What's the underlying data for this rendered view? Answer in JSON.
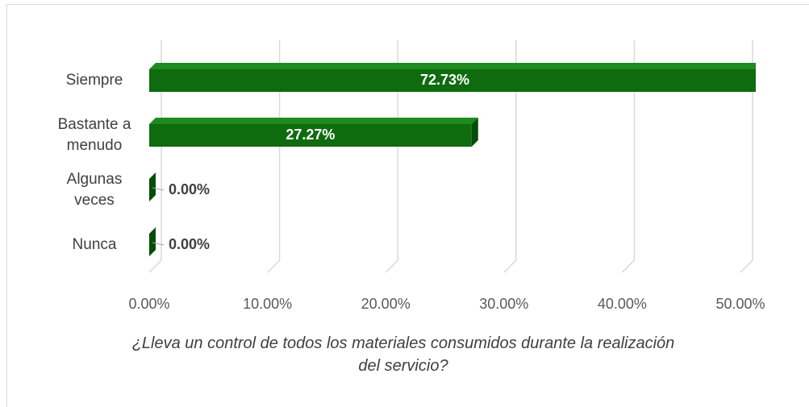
{
  "chart_data": {
    "type": "bar",
    "orientation": "horizontal",
    "title": "¿Lleva un control de todos los materiales consumidos durante la realización del servicio?",
    "categories": [
      "Siempre",
      "Bastante a menudo",
      "Algunas veces",
      "Nunca"
    ],
    "values": [
      72.73,
      27.27,
      0,
      0
    ],
    "value_labels": [
      "72.73%",
      "27.27%",
      "0.00%",
      "0.00%"
    ],
    "color": "#0e6b0e",
    "xlim": [
      0,
      50
    ],
    "xticks": [
      {
        "value": 0,
        "label": "0.00%"
      },
      {
        "value": 10,
        "label": "10.00%"
      },
      {
        "value": 20,
        "label": "20.00%"
      },
      {
        "value": 30,
        "label": "30.00%"
      },
      {
        "value": 40,
        "label": "40.00%"
      },
      {
        "value": 50,
        "label": "50.00%"
      }
    ],
    "grid": true
  }
}
